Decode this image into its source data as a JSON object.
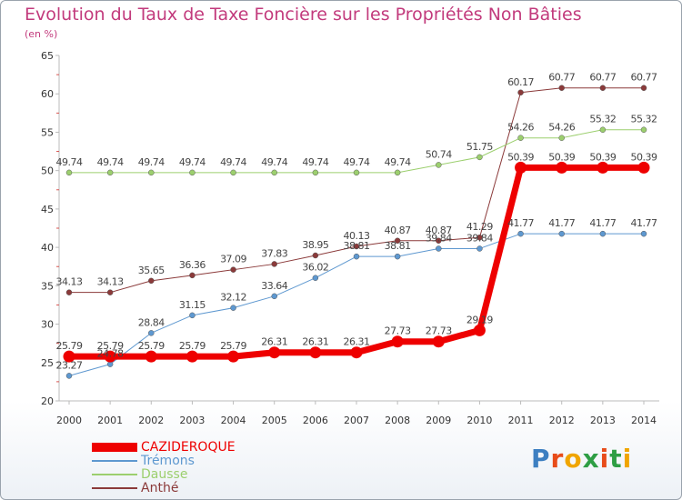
{
  "page": {
    "title": "Evolution du Taux de Taxe Foncière sur les Propriétés Non Bâties",
    "unit": "(en %)",
    "logo": "Proxiti"
  },
  "colors": {
    "title": "#c23a7c",
    "axis": "#bbbbbb",
    "tick": "#d9534f",
    "logo": [
      "#3d7fc1",
      "#e84c1a",
      "#f0a500",
      "#2e9e44",
      "#e84c1a",
      "#2e9e44",
      "#f0a500"
    ]
  },
  "chart_data": {
    "type": "line",
    "title": "Evolution du Taux de Taxe Foncière sur les Propriétés Non Bâties",
    "ylabel": "(en %)",
    "xlabel": "",
    "ylim": [
      20,
      65
    ],
    "yticks": [
      20,
      25,
      30,
      35,
      40,
      45,
      50,
      55,
      60,
      65
    ],
    "grid": false,
    "legend_position": "bottom-left",
    "categories": [
      "2000",
      "2001",
      "2002",
      "2003",
      "2004",
      "2005",
      "2006",
      "2007",
      "2008",
      "2009",
      "2010",
      "2011",
      "2012",
      "2013",
      "2014"
    ],
    "series": [
      {
        "name": "CAZIDEROQUE",
        "color": "#ee0000",
        "width": 7,
        "values": [
          25.79,
          25.79,
          25.79,
          25.79,
          25.79,
          26.31,
          26.31,
          26.31,
          27.73,
          27.73,
          29.19,
          50.39,
          50.39,
          50.39,
          50.39
        ],
        "labels": [
          "25.79",
          "25.79",
          "25.79",
          "25.79",
          "25.79",
          "26.31",
          "26.31",
          "26.31",
          "27.73",
          "27.73",
          "29.19",
          "50.39",
          "50.39",
          "50.39",
          "50.39"
        ]
      },
      {
        "name": "Trémons",
        "color": "#5e98d0",
        "width": 1,
        "values": [
          23.27,
          24.78,
          28.84,
          31.15,
          32.12,
          33.64,
          36.02,
          38.81,
          38.81,
          39.84,
          39.84,
          41.77,
          41.77,
          41.77,
          41.77
        ],
        "labels": [
          "23.27",
          "24.78",
          "28.84",
          "31.15",
          "32.12",
          "33.64",
          "36.02",
          "38.81",
          "38.81",
          "39.84",
          "39.84",
          "41.77",
          "41.77",
          "41.77",
          "41.77"
        ]
      },
      {
        "name": "Dausse",
        "color": "#9ccf6e",
        "width": 1,
        "values": [
          49.74,
          49.74,
          49.74,
          49.74,
          49.74,
          49.74,
          49.74,
          49.74,
          49.74,
          50.74,
          51.75,
          54.26,
          54.26,
          55.32,
          55.32
        ],
        "labels": [
          "49.74",
          "49.74",
          "49.74",
          "49.74",
          "49.74",
          "49.74",
          "49.74",
          "49.74",
          "49.74",
          "50.74",
          "51.75",
          "54.26",
          "54.26",
          "55.32",
          "55.32"
        ]
      },
      {
        "name": "Anthé",
        "color": "#8b3a3a",
        "width": 1,
        "values": [
          34.13,
          34.13,
          35.65,
          36.36,
          37.09,
          37.83,
          38.95,
          40.13,
          40.87,
          40.87,
          41.29,
          60.17,
          60.77,
          60.77,
          60.77
        ],
        "labels": [
          "34.13",
          "34.13",
          "35.65",
          "36.36",
          "37.09",
          "37.83",
          "38.95",
          "40.13",
          "40.87",
          "40.87",
          "41.29",
          "60.17",
          "60.77",
          "60.77",
          "60.77"
        ]
      }
    ]
  }
}
